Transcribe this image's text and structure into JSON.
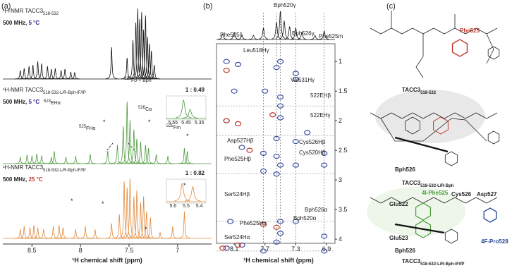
{
  "panels": {
    "a": "(a)",
    "b": "(b)",
    "c": "(c)"
  },
  "chart_data": [
    {
      "type": "spectra",
      "x_label": "¹H chemical shift (ppm)",
      "xlim": [
        8.8,
        6.65
      ],
      "xticks": [
        8.5,
        8.0,
        7.5,
        7.0
      ],
      "star_symbol": "*",
      "series": [
        {
          "label": "¹H-NMR TACC3",
          "label_sub": "518-532",
          "conditions": "500 MHz, ",
          "temperature": "5 °C",
          "temperature_color": "#2b2b8f",
          "color": "#111111",
          "ppm": [
            8.62,
            8.58,
            8.53,
            8.49,
            8.44,
            8.4,
            8.34,
            8.3,
            8.26,
            8.2,
            8.16,
            8.1,
            8.06,
            7.68,
            7.52,
            7.46,
            7.43,
            7.41,
            7.39,
            7.37,
            7.35,
            7.33,
            7.31,
            7.29,
            7.27,
            7.24
          ],
          "intensity": [
            12,
            15,
            18,
            20,
            25,
            22,
            18,
            14,
            15,
            12,
            14,
            10,
            9,
            45,
            30,
            55,
            80,
            100,
            85,
            95,
            70,
            90,
            60,
            50,
            40,
            20
          ]
        },
        {
          "label": "¹H-NMR TACC3",
          "label_sub": "518-532-L/R-Bph-IF/fP",
          "conditions": "500 MHz, ",
          "temperature": "5 °C",
          "temperature_color": "#2b2b8f",
          "color": "#4e9a3e",
          "ppm": [
            8.62,
            8.55,
            8.5,
            8.45,
            8.4,
            8.3,
            8.27,
            8.15,
            8.05,
            7.9,
            7.72,
            7.62,
            7.56,
            7.52,
            7.49,
            7.45,
            7.42,
            7.38,
            7.33,
            7.3,
            7.22,
            7.1,
            6.93,
            6.9
          ],
          "intensity": [
            10,
            14,
            12,
            16,
            13,
            10,
            20,
            10,
            12,
            15,
            20,
            30,
            60,
            100,
            70,
            55,
            40,
            35,
            30,
            25,
            15,
            12,
            25,
            20
          ],
          "annotations": [
            {
              "sup": "523",
              "text": "EHα"
            },
            {
              "sup": "525",
              "text": "FHα"
            },
            {
              "sup": "525",
              "text": "Fo + Bph"
            },
            {
              "sup": "526",
              "text": "Cα"
            },
            {
              "sup": "525",
              "text": "Fm"
            }
          ],
          "stars": [
            "#c0392b",
            "#4a2a7a",
            "#4e9a3e",
            "#c0392b"
          ],
          "inset": {
            "label": "1 : 0.49",
            "xlim": [
              5.6,
              5.3
            ],
            "xticks": [
              5.55,
              5.45,
              5.35
            ],
            "ppm": [
              5.47,
              5.42
            ],
            "intensity": [
              100,
              49
            ]
          }
        },
        {
          "label": "¹H-NMR TACC3",
          "label_sub": "518-532-L/R-Bph-IF/fP",
          "conditions": "500 MHz, ",
          "temperature": "25 °C",
          "temperature_color": "#c0392b",
          "color": "#e08a3c",
          "ppm": [
            8.62,
            8.58,
            8.52,
            8.48,
            8.44,
            8.38,
            8.28,
            8.22,
            8.18,
            8.05,
            7.95,
            7.85,
            7.68,
            7.6,
            7.55,
            7.52,
            7.49,
            7.45,
            7.42,
            7.38,
            7.35,
            7.32,
            7.28,
            7.18,
            7.05,
            6.93
          ],
          "intensity": [
            15,
            20,
            18,
            22,
            18,
            15,
            20,
            22,
            18,
            15,
            20,
            15,
            25,
            40,
            95,
            85,
            100,
            70,
            80,
            60,
            70,
            45,
            35,
            10,
            20,
            45
          ],
          "stars": [
            "#e08a3c",
            "#4a2a7a",
            "#4e9a3e",
            "#c0392b"
          ],
          "inset": {
            "label": "1 : 0.82",
            "xlim": [
              5.65,
              5.35
            ],
            "xticks": [
              5.6,
              5.5,
              5.4
            ],
            "ppm": [
              5.53,
              5.45
            ],
            "intensity": [
              100,
              82
            ]
          }
        }
      ]
    },
    {
      "type": "nmr2d",
      "x_label": "¹H chemical shift (ppm)",
      "xlim": [
        8.33,
        6.79
      ],
      "xticks": [
        8.1,
        7.7,
        7.3,
        6.9
      ],
      "ylim": [
        0.7,
        4.07
      ],
      "yticks": [
        1.0,
        1.5,
        2.0,
        2.5,
        3.0,
        3.5,
        4.0
      ],
      "projection": {
        "ppm": [
          8.25,
          8.1,
          8.0,
          7.85,
          7.72,
          7.55,
          7.5,
          7.45,
          7.38,
          7.3,
          7.22,
          7.05,
          6.93
        ],
        "intensity": [
          20,
          25,
          15,
          15,
          40,
          60,
          100,
          65,
          45,
          40,
          25,
          15,
          30
        ]
      },
      "top_labels": [
        "Bph520γ",
        "Phe525δ",
        "Bph526γ",
        "Phe525m"
      ],
      "labels": [
        "Leu518Hγ",
        "Val531Hγ",
        "522EHβ",
        "522EHγ",
        "Asp527Hβ",
        "Cys526Hβ",
        "Cys520Hβ",
        "Phe525Hβ",
        "Ser524Hβ",
        "Bph526α",
        "Bph520α",
        "Phe525Hα",
        "Ser524Hα"
      ],
      "series": [
        {
          "color": "#3a4fa0",
          "x": [
            8.2,
            8.05,
            7.5,
            7.55,
            7.3,
            7.3,
            8.1,
            7.7,
            7.5,
            7.5,
            8.2,
            7.5,
            7.55,
            7.3,
            7.15,
            8.0,
            7.72,
            7.55,
            7.5,
            7.3,
            6.93,
            6.93,
            7.72,
            7.55,
            8.15,
            7.5,
            7.3,
            7.72,
            6.93,
            7.5,
            7.55,
            7.72,
            8.0,
            8.2,
            6.93
          ],
          "y": [
            1.0,
            1.05,
            1.0,
            1.1,
            1.2,
            1.3,
            1.5,
            1.5,
            1.6,
            1.75,
            2.0,
            1.95,
            2.3,
            2.35,
            2.2,
            2.45,
            2.55,
            2.6,
            2.75,
            2.75,
            2.55,
            2.75,
            2.85,
            2.9,
            3.7,
            3.7,
            3.7,
            3.75,
            3.95,
            3.9,
            4.05,
            4.2,
            4.1,
            4.15,
            4.2
          ]
        },
        {
          "color": "#c0392b",
          "x": [
            8.2,
            8.2,
            8.05,
            7.72,
            7.55,
            8.05,
            8.25,
            7.9,
            7.6
          ],
          "y": [
            1.15,
            2.0,
            2.05,
            3.75,
            3.8,
            4.1,
            4.15,
            2.5,
            1.9
          ]
        }
      ]
    }
  ],
  "structures": {
    "top": {
      "residue": "Phe525",
      "name": "TACC3",
      "sub": "518-532"
    },
    "middle": {
      "residue": "Bph526",
      "name": "TACC3",
      "sub": "518-532-L/R-Bph"
    },
    "bottom": {
      "labels": [
        "Glu522",
        "4l-Phe525",
        "Cys526",
        "Asp527",
        "Glu523",
        "Bph526",
        "4F-Pro528"
      ],
      "name": "TACC3",
      "sub": "518-532-L/R-Bph-IF/fP"
    }
  }
}
